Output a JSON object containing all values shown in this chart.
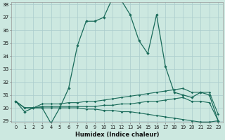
{
  "xlabel": "Humidex (Indice chaleur)",
  "x": [
    0,
    1,
    2,
    3,
    4,
    5,
    6,
    7,
    8,
    9,
    10,
    11,
    12,
    13,
    14,
    15,
    16,
    17,
    18,
    19,
    20,
    21,
    22,
    23
  ],
  "line_main": [
    30.5,
    29.7,
    30.0,
    30.0,
    28.8,
    30.0,
    31.5,
    34.8,
    36.7,
    36.7,
    37.0,
    38.5,
    38.3,
    37.2,
    35.2,
    34.2,
    37.2,
    33.2,
    31.2,
    31.0,
    30.8,
    31.2,
    31.0,
    29.0
  ],
  "line_upper": [
    30.5,
    30.0,
    30.0,
    30.3,
    30.3,
    30.3,
    30.4,
    30.4,
    30.5,
    30.5,
    30.6,
    30.7,
    30.8,
    30.9,
    31.0,
    31.1,
    31.2,
    31.3,
    31.4,
    31.5,
    31.2,
    31.2,
    31.2,
    29.5
  ],
  "line_mid": [
    30.5,
    30.0,
    30.0,
    30.1,
    30.1,
    30.1,
    30.1,
    30.1,
    30.1,
    30.1,
    30.2,
    30.2,
    30.3,
    30.3,
    30.4,
    30.5,
    30.5,
    30.6,
    30.7,
    30.8,
    30.5,
    30.5,
    30.4,
    29.0
  ],
  "line_lower": [
    30.5,
    30.0,
    30.0,
    30.0,
    30.0,
    30.0,
    30.0,
    30.0,
    29.9,
    29.9,
    29.8,
    29.8,
    29.7,
    29.7,
    29.6,
    29.5,
    29.4,
    29.3,
    29.2,
    29.1,
    29.0,
    28.9,
    28.9,
    29.0
  ],
  "ylim_min": 29,
  "ylim_max": 38,
  "yticks": [
    29,
    30,
    31,
    32,
    33,
    34,
    35,
    36,
    37,
    38
  ],
  "color": "#1a6b5a",
  "bg_color": "#cce8e0",
  "grid_color": "#aacccc"
}
